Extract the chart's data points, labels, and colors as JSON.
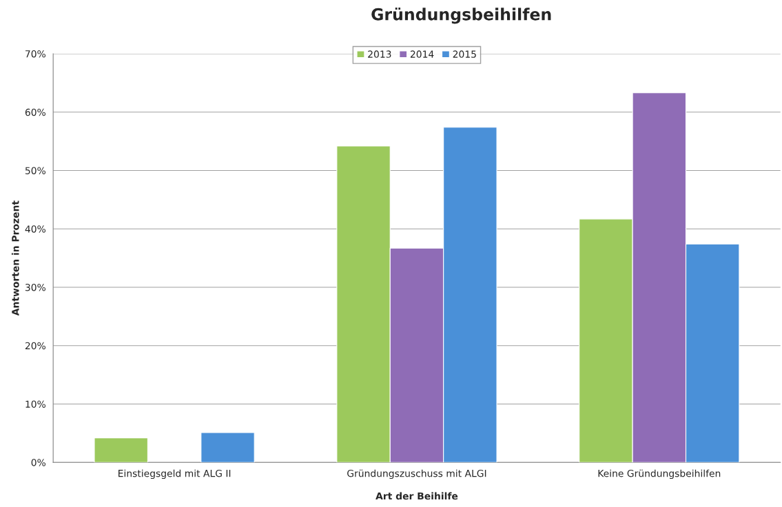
{
  "chart_data": {
    "type": "bar",
    "title": "Gründungsbeihilfen",
    "xlabel": "Art der Beihilfe",
    "ylabel": "Antworten in Prozent",
    "categories": [
      "Einstiegsgeld mit ALG II",
      "Gründungszuschuss mit ALGI",
      "Keine Gründungsbeihilfen"
    ],
    "series": [
      {
        "name": "2013",
        "color": "#9cc95c",
        "values": [
          4.2,
          54.2,
          41.7
        ]
      },
      {
        "name": "2014",
        "color": "#8f6cb6",
        "values": [
          null,
          36.7,
          63.3
        ]
      },
      {
        "name": "2015",
        "color": "#4a90d8",
        "values": [
          5.1,
          57.4,
          37.4
        ]
      }
    ],
    "ylim": [
      0,
      70
    ],
    "yticks": [
      {
        "value": 0,
        "label": "0%"
      },
      {
        "value": 10,
        "label": "10%"
      },
      {
        "value": 20,
        "label": "20%"
      },
      {
        "value": 30,
        "label": "30%"
      },
      {
        "value": 40,
        "label": "40%"
      },
      {
        "value": 50,
        "label": "50%"
      },
      {
        "value": 60,
        "label": "60%"
      },
      {
        "value": 70,
        "label": "70%"
      }
    ],
    "grid": "y",
    "legend": "top"
  }
}
